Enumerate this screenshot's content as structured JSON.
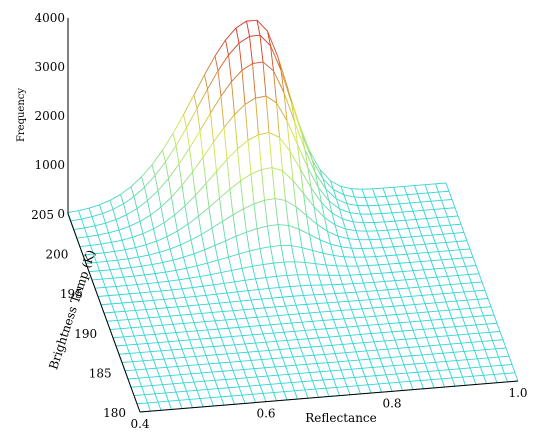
{
  "chart_data": {
    "type": "surface",
    "title": "",
    "xlabel": "Reflectance",
    "ylabel": "Brightness Temp (K)",
    "zlabel": "Frequency",
    "xlim": [
      0.4,
      1.0
    ],
    "ylim": [
      180,
      205
    ],
    "zlim": [
      0,
      4000
    ],
    "x_ticks": [
      "0.4",
      "0.6",
      "0.8",
      "1.0"
    ],
    "y_ticks": [
      "180",
      "185",
      "190",
      "195",
      "200",
      "205"
    ],
    "z_ticks": [
      "0",
      "1000",
      "2000",
      "3000",
      "4000"
    ],
    "grid": {
      "x_lines": 36,
      "y_lines": 24
    },
    "surface_peak": {
      "reflectance": 0.7,
      "brightness_temp": 204,
      "frequency": 3400
    },
    "colors": {
      "mesh_low": "#33d4d4",
      "mesh_mid": "#d4e84a",
      "mesh_high": "#d4341f",
      "axes": "#000000"
    }
  }
}
